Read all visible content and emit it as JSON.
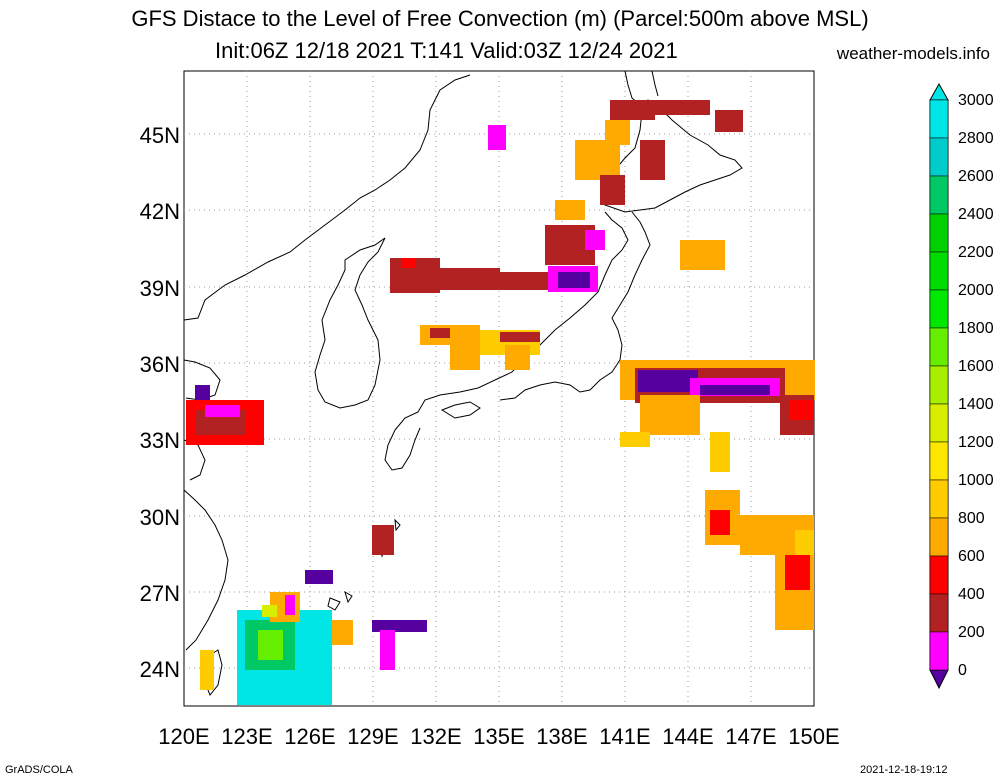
{
  "title": {
    "line1": "GFS Distace to the Level of Free Convection (m) (Parcel:500m above MSL)",
    "line2": "Init:06Z 12/18 2021 T:141 Valid:03Z 12/24 2021",
    "site": "weather-models.info"
  },
  "axes": {
    "lat_labels": [
      "45N",
      "42N",
      "39N",
      "36N",
      "33N",
      "30N",
      "27N",
      "24N"
    ],
    "lon_labels": [
      "120E",
      "123E",
      "126E",
      "129E",
      "132E",
      "135E",
      "138E",
      "141E",
      "144E",
      "147E",
      "150E"
    ],
    "lon_range": [
      120,
      150
    ],
    "lat_range": [
      22.5,
      47.5
    ],
    "grid": "dotted"
  },
  "colorbar": {
    "labels": [
      "3000",
      "2800",
      "2600",
      "2400",
      "2200",
      "2000",
      "1800",
      "1600",
      "1400",
      "1200",
      "1000",
      "800",
      "600",
      "400",
      "200",
      "0"
    ],
    "colors": [
      "#00e5e5",
      "#00cccc",
      "#00c864",
      "#00d000",
      "#00dc00",
      "#00e800",
      "#66ee00",
      "#a8ee00",
      "#d8ee00",
      "#ffe600",
      "#ffcc00",
      "#ffaa00",
      "#ff0000",
      "#b22222",
      "#ff00ff",
      "#55009f"
    ]
  },
  "footer": {
    "left": "GrADS/COLA",
    "right": "2021-12-18-19:12"
  }
}
